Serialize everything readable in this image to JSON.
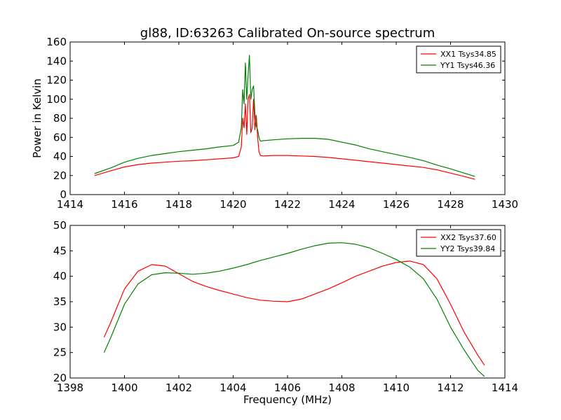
{
  "figure": {
    "title": "gl88, ID:63263 Calibrated On-source spectrum",
    "xlabel": "Frequency (MHz)"
  },
  "colors": {
    "xx": "#ff0000",
    "yy": "#008000",
    "axes": "#000000",
    "background": "#ffffff"
  },
  "chart_data": [
    {
      "type": "line",
      "title": "gl88, ID:63263 Calibrated On-source spectrum",
      "ylabel": "Power in Kelvin",
      "xlabel": "",
      "xlim": [
        1414,
        1430
      ],
      "ylim": [
        0,
        160
      ],
      "xticks": [
        1414,
        1416,
        1418,
        1420,
        1422,
        1424,
        1426,
        1428,
        1430
      ],
      "yticks": [
        0,
        20,
        40,
        60,
        80,
        100,
        120,
        140,
        160
      ],
      "grid": false,
      "legend_position": "top-right",
      "series": [
        {
          "name": "XX1 Tsys34.85",
          "color": "#ff0000",
          "x": [
            1414.9,
            1415.5,
            1416,
            1416.5,
            1417,
            1417.5,
            1418,
            1418.5,
            1419,
            1419.5,
            1420,
            1420.2,
            1420.3,
            1420.35,
            1420.4,
            1420.45,
            1420.5,
            1420.55,
            1420.6,
            1420.65,
            1420.7,
            1420.75,
            1420.8,
            1420.85,
            1420.9,
            1420.95,
            1421.0,
            1421.1,
            1421.5,
            1422,
            1422.5,
            1423,
            1423.5,
            1424,
            1424.5,
            1425,
            1425.5,
            1426,
            1426.5,
            1427,
            1427.5,
            1428,
            1428.5,
            1428.9
          ],
          "y": [
            20,
            25,
            29,
            31.5,
            33,
            34,
            35,
            35.5,
            36.5,
            37.5,
            38.5,
            40,
            50,
            80,
            70,
            95,
            63,
            100,
            105,
            65,
            70,
            100,
            68,
            83,
            60,
            45,
            41,
            40.5,
            41,
            41,
            40.5,
            40,
            39,
            37.5,
            36,
            34.5,
            33,
            31.5,
            30,
            28.5,
            26,
            22.5,
            19,
            16
          ]
        },
        {
          "name": "YY1 Tsys46.36",
          "color": "#008000",
          "x": [
            1414.9,
            1415.5,
            1416,
            1416.5,
            1417,
            1417.5,
            1418,
            1418.5,
            1419,
            1419.5,
            1420,
            1420.2,
            1420.3,
            1420.35,
            1420.4,
            1420.45,
            1420.5,
            1420.55,
            1420.6,
            1420.65,
            1420.7,
            1420.75,
            1420.8,
            1420.85,
            1420.9,
            1420.95,
            1421.0,
            1421.1,
            1421.5,
            1422,
            1422.5,
            1423,
            1423.5,
            1424,
            1424.5,
            1425,
            1425.5,
            1426,
            1426.5,
            1427,
            1427.5,
            1428,
            1428.5,
            1428.9
          ],
          "y": [
            22,
            28,
            34,
            38,
            41,
            43,
            45,
            46.5,
            48,
            50,
            51.5,
            55,
            70,
            110,
            95,
            138,
            100,
            125,
            146,
            100,
            110,
            114,
            85,
            72,
            68,
            60,
            56,
            56.5,
            57.5,
            58.5,
            59,
            59,
            58,
            55,
            52,
            48,
            45,
            42,
            39,
            35.5,
            31,
            27,
            22.5,
            19
          ]
        }
      ]
    },
    {
      "type": "line",
      "title": "",
      "ylabel": "",
      "xlabel": "Frequency (MHz)",
      "xlim": [
        1398,
        1414
      ],
      "ylim": [
        20,
        50
      ],
      "xticks": [
        1398,
        1400,
        1402,
        1404,
        1406,
        1408,
        1410,
        1412,
        1414
      ],
      "yticks": [
        20,
        25,
        30,
        35,
        40,
        45,
        50
      ],
      "grid": false,
      "legend_position": "top-right",
      "series": [
        {
          "name": "XX2 Tsys37.60",
          "color": "#ff0000",
          "x": [
            1399.25,
            1399.5,
            1400,
            1400.5,
            1401,
            1401.5,
            1402,
            1402.5,
            1403,
            1403.5,
            1404,
            1404.5,
            1405,
            1405.5,
            1406,
            1406.5,
            1407,
            1407.5,
            1408,
            1408.5,
            1409,
            1409.5,
            1410,
            1410.5,
            1411,
            1411.5,
            1412,
            1412.5,
            1413,
            1413.25
          ],
          "y": [
            28,
            31,
            37.5,
            41,
            42.3,
            42,
            40.5,
            39,
            38,
            37.2,
            36.5,
            35.8,
            35.3,
            35.1,
            35,
            35.5,
            36.5,
            37.5,
            38.7,
            40,
            41,
            42,
            42.7,
            43,
            42.3,
            39.5,
            34.5,
            29,
            24.5,
            22.5
          ]
        },
        {
          "name": "YY2 Tsys39.84",
          "color": "#008000",
          "x": [
            1399.25,
            1399.5,
            1400,
            1400.5,
            1401,
            1401.5,
            1402,
            1402.5,
            1403,
            1403.5,
            1404,
            1404.5,
            1405,
            1405.5,
            1406,
            1406.5,
            1407,
            1407.5,
            1408,
            1408.5,
            1409,
            1409.5,
            1410,
            1410.5,
            1411,
            1411.5,
            1412,
            1412.5,
            1413,
            1413.25
          ],
          "y": [
            25,
            28,
            34.5,
            38.5,
            40.3,
            40.7,
            40.6,
            40.4,
            40.6,
            41,
            41.6,
            42.3,
            43.1,
            43.8,
            44.5,
            45.3,
            46,
            46.5,
            46.6,
            46.3,
            45.6,
            44.5,
            43.3,
            41.8,
            39.5,
            35.5,
            30,
            25.5,
            21.5,
            20.3
          ]
        }
      ]
    }
  ]
}
